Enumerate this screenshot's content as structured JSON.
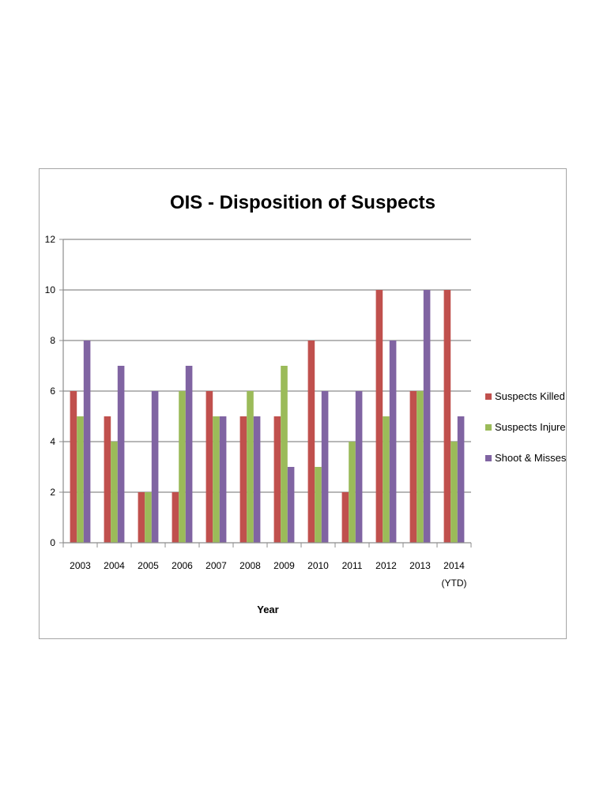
{
  "chart_data": {
    "type": "bar",
    "title": "OIS - Disposition of Suspects",
    "xlabel": "Year",
    "ylabel": "",
    "categories": [
      "2003",
      "2004",
      "2005",
      "2006",
      "2007",
      "2008",
      "2009",
      "2010",
      "2011",
      "2012",
      "2013",
      "2014 (YTD)"
    ],
    "category_lines": [
      [
        "2003"
      ],
      [
        "2004"
      ],
      [
        "2005"
      ],
      [
        "2006"
      ],
      [
        "2007"
      ],
      [
        "2008"
      ],
      [
        "2009"
      ],
      [
        "2010"
      ],
      [
        "2011"
      ],
      [
        "2012"
      ],
      [
        "2013"
      ],
      [
        "2014",
        "(YTD)"
      ]
    ],
    "series": [
      {
        "name": "Suspects Killed",
        "color": "#c0504d",
        "values": [
          6,
          5,
          2,
          2,
          6,
          5,
          5,
          8,
          2,
          10,
          6,
          10
        ]
      },
      {
        "name": "Suspects Injured",
        "color": "#9bbb59",
        "values": [
          5,
          4,
          2,
          6,
          5,
          6,
          7,
          3,
          4,
          5,
          6,
          4
        ]
      },
      {
        "name": "Shoot & Misses",
        "color": "#8064a2",
        "values": [
          8,
          7,
          6,
          7,
          5,
          5,
          3,
          6,
          6,
          8,
          10,
          5
        ]
      }
    ],
    "ylim": [
      0,
      12
    ],
    "yticks": [
      0,
      2,
      4,
      6,
      8,
      10,
      12
    ],
    "grid": true,
    "legend_position": "right"
  }
}
